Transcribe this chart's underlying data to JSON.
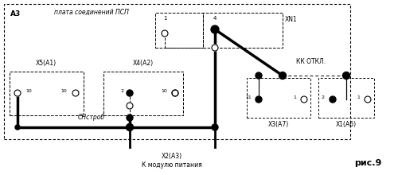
{
  "fig_width": 5.0,
  "fig_height": 2.2,
  "dpi": 100,
  "bg_color": "#ffffff",
  "title_label": "рис.9",
  "a3_label": "А3",
  "pcb_label": "плата соединений ПСП",
  "xn1_label": "XN1",
  "kk_label": "КК ОТКЛ.",
  "sn_label": "СНстроб",
  "x2_label": "Х2(А3)",
  "x2_sublabel": "К модулю питания",
  "line_color": "#000000"
}
